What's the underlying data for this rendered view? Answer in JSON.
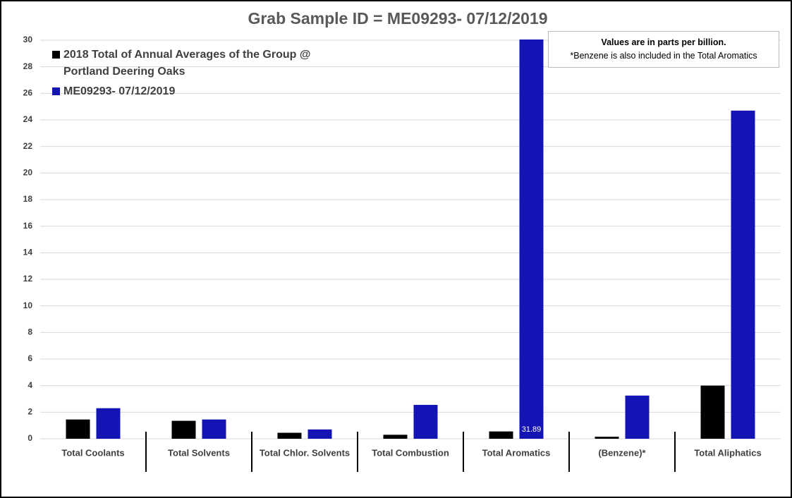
{
  "chart_data": {
    "type": "bar",
    "title": "Grab Sample ID = ME09293- 07/12/2019",
    "note": [
      "Values are in parts per billion.",
      "*Benzene is also included in the Total Aromatics"
    ],
    "categories": [
      "Total Coolants",
      "Total Solvents",
      "Total Chlor. Solvents",
      "Total Combustion",
      "Total Aromatics",
      "(Benzene)*",
      "Total Aliphatics"
    ],
    "series": [
      {
        "name": "2018 Total of Annual Averages of the Group @ Portland Deering Oaks",
        "color": "#000000",
        "values": [
          1.45,
          1.35,
          0.45,
          0.3,
          0.55,
          0.15,
          4.0
        ]
      },
      {
        "name": "ME09293- 07/12/2019",
        "color": "#1414b4",
        "values": [
          2.3,
          1.45,
          0.7,
          2.55,
          31.89,
          3.25,
          24.7
        ],
        "value_labels": [
          null,
          null,
          null,
          null,
          "31.89",
          null,
          null
        ]
      }
    ],
    "ylim": [
      0,
      30
    ],
    "yticks": [
      0,
      2,
      4,
      6,
      8,
      10,
      12,
      14,
      16,
      18,
      20,
      22,
      24,
      26,
      28,
      30
    ],
    "grid": true,
    "legend": "top-left"
  }
}
